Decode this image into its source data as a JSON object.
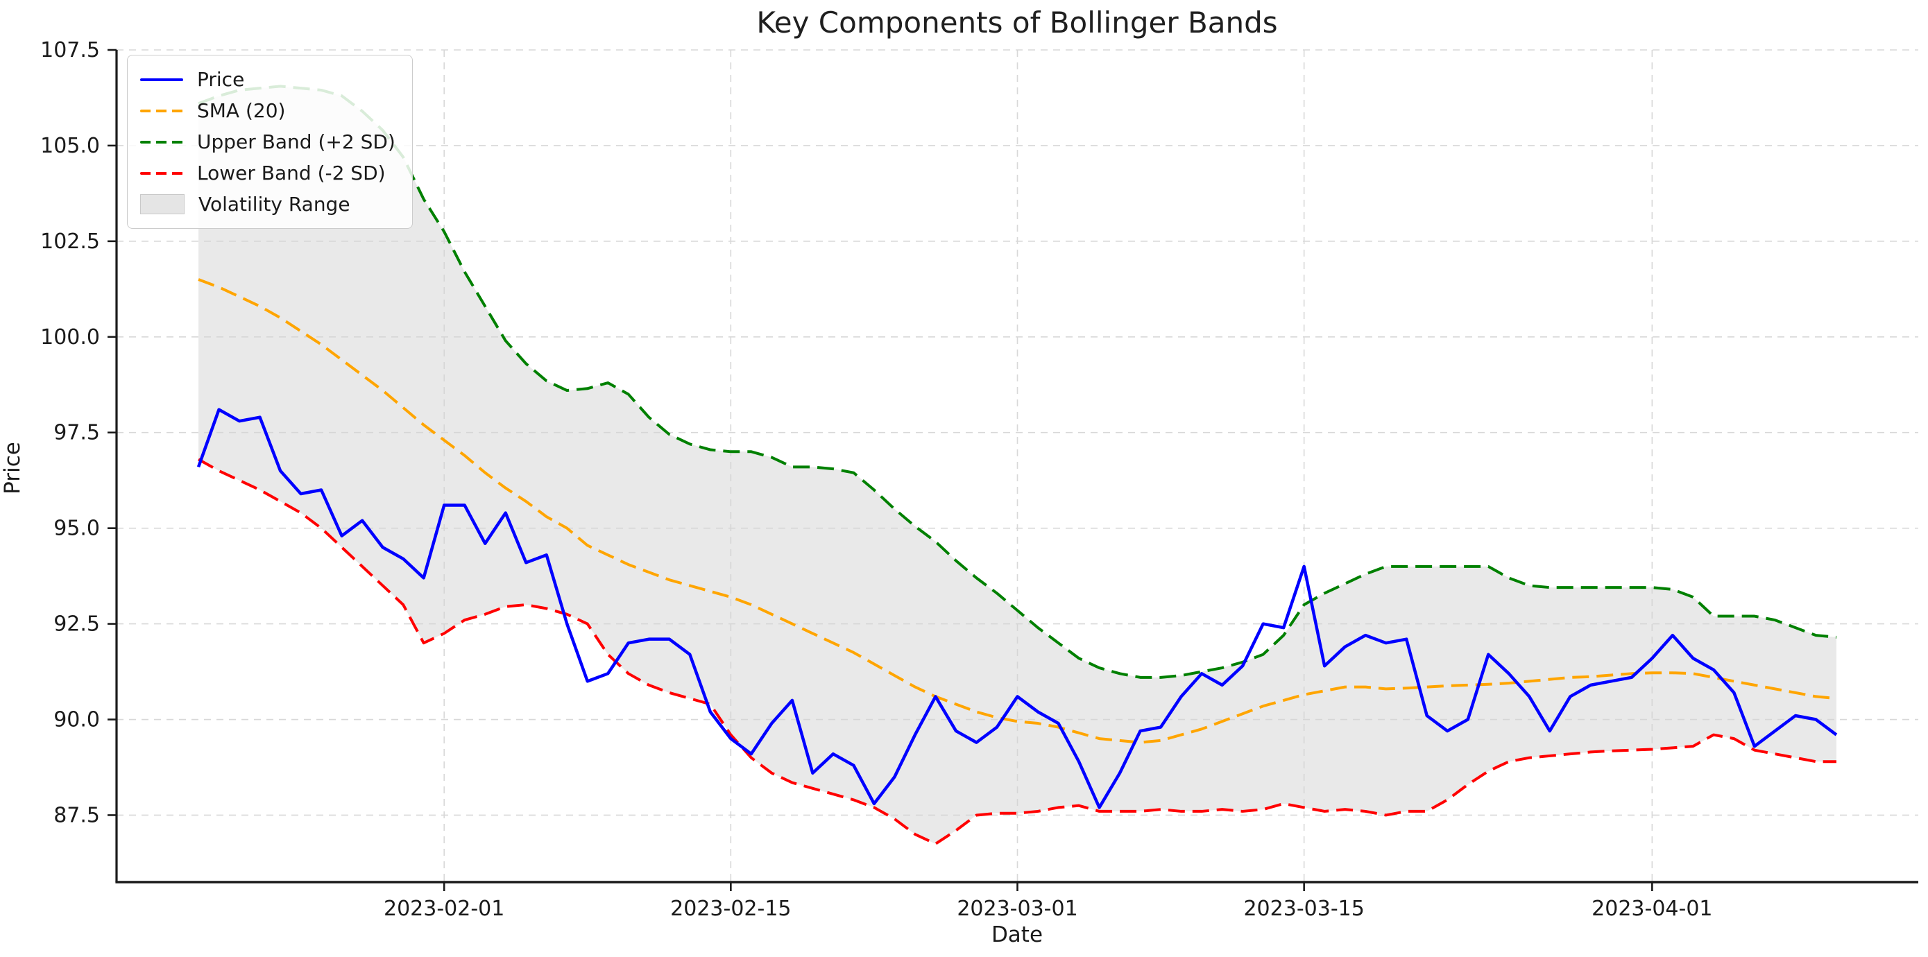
{
  "title": "Key Components of Bollinger Bands",
  "xlabel": "Date",
  "ylabel": "Price",
  "legend": {
    "items": [
      {
        "label": "Price",
        "color": "#0000ff",
        "style": "solid"
      },
      {
        "label": "SMA (20)",
        "color": "#ffa500",
        "style": "dashed"
      },
      {
        "label": "Upper Band (+2 SD)",
        "color": "#008000",
        "style": "dashed"
      },
      {
        "label": "Lower Band (-2 SD)",
        "color": "#ff0000",
        "style": "dashed"
      },
      {
        "label": "Volatility Range",
        "color": "#d3d3d3",
        "style": "fill"
      }
    ]
  },
  "colors": {
    "price": "#0000ff",
    "sma": "#ffa500",
    "upper": "#008000",
    "lower": "#ff0000",
    "band_fill": "#d3d3d3",
    "grid": "#d8d8d8",
    "spine": "#1a1a1a",
    "text": "#1a1a1a",
    "title_text": "#1f1f1f",
    "background": "#ffffff"
  },
  "chart_data": {
    "type": "line",
    "title": "Key Components of Bollinger Bands",
    "xlabel": "Date",
    "ylabel": "Price",
    "grid": true,
    "legend_position": "upper left",
    "ylim": [
      85.75,
      107.5
    ],
    "x_margin_days": 4,
    "x_dates": [
      "2023-01-20",
      "2023-01-21",
      "2023-01-22",
      "2023-01-23",
      "2023-01-24",
      "2023-01-25",
      "2023-01-26",
      "2023-01-27",
      "2023-01-28",
      "2023-01-29",
      "2023-01-30",
      "2023-01-31",
      "2023-02-01",
      "2023-02-02",
      "2023-02-03",
      "2023-02-04",
      "2023-02-05",
      "2023-02-06",
      "2023-02-07",
      "2023-02-08",
      "2023-02-09",
      "2023-02-10",
      "2023-02-11",
      "2023-02-12",
      "2023-02-13",
      "2023-02-14",
      "2023-02-15",
      "2023-02-16",
      "2023-02-17",
      "2023-02-18",
      "2023-02-19",
      "2023-02-20",
      "2023-02-21",
      "2023-02-22",
      "2023-02-23",
      "2023-02-24",
      "2023-02-25",
      "2023-02-26",
      "2023-02-27",
      "2023-02-28",
      "2023-03-01",
      "2023-03-02",
      "2023-03-03",
      "2023-03-04",
      "2023-03-05",
      "2023-03-06",
      "2023-03-07",
      "2023-03-08",
      "2023-03-09",
      "2023-03-10",
      "2023-03-11",
      "2023-03-12",
      "2023-03-13",
      "2023-03-14",
      "2023-03-15",
      "2023-03-16",
      "2023-03-17",
      "2023-03-18",
      "2023-03-19",
      "2023-03-20",
      "2023-03-21",
      "2023-03-22",
      "2023-03-23",
      "2023-03-24",
      "2023-03-25",
      "2023-03-26",
      "2023-03-27",
      "2023-03-28",
      "2023-03-29",
      "2023-03-30",
      "2023-03-31",
      "2023-04-01",
      "2023-04-02",
      "2023-04-03",
      "2023-04-04",
      "2023-04-05",
      "2023-04-06",
      "2023-04-07",
      "2023-04-08",
      "2023-04-09",
      "2023-04-10"
    ],
    "series": [
      {
        "name": "Price",
        "color": "#0000ff",
        "style": "solid",
        "width": 4.5,
        "values": [
          96.6,
          98.1,
          97.8,
          97.9,
          96.5,
          95.9,
          96.0,
          94.8,
          95.2,
          94.5,
          94.2,
          93.7,
          95.6,
          95.6,
          94.6,
          95.4,
          94.1,
          94.3,
          92.5,
          91.0,
          91.2,
          92.0,
          92.1,
          92.1,
          91.7,
          90.2,
          89.5,
          89.1,
          89.9,
          90.5,
          88.6,
          89.1,
          88.8,
          87.8,
          88.5,
          89.6,
          90.6,
          89.7,
          89.4,
          89.8,
          90.6,
          90.2,
          89.9,
          88.9,
          87.7,
          88.6,
          89.7,
          89.8,
          90.6,
          91.2,
          90.9,
          91.4,
          92.5,
          92.4,
          94.0,
          91.4,
          91.9,
          92.2,
          92.0,
          92.1,
          90.1,
          89.7,
          90.0,
          91.7,
          91.2,
          90.6,
          89.7,
          90.6,
          90.9,
          91.0,
          91.1,
          91.6,
          92.2,
          91.6,
          91.3,
          90.7,
          89.3,
          89.7,
          90.1,
          90.0,
          89.6
        ]
      },
      {
        "name": "SMA (20)",
        "color": "#ffa500",
        "style": "dashed",
        "width": 4,
        "values": [
          101.5,
          101.3,
          101.05,
          100.8,
          100.5,
          100.15,
          99.8,
          99.4,
          99.0,
          98.6,
          98.15,
          97.7,
          97.3,
          96.9,
          96.45,
          96.05,
          95.7,
          95.3,
          95.0,
          94.55,
          94.3,
          94.05,
          93.85,
          93.65,
          93.5,
          93.35,
          93.2,
          93.0,
          92.75,
          92.5,
          92.25,
          92.0,
          91.75,
          91.45,
          91.15,
          90.85,
          90.6,
          90.4,
          90.2,
          90.05,
          89.95,
          89.9,
          89.8,
          89.65,
          89.5,
          89.45,
          89.4,
          89.45,
          89.6,
          89.75,
          89.95,
          90.15,
          90.35,
          90.5,
          90.65,
          90.75,
          90.85,
          90.85,
          90.8,
          90.82,
          90.85,
          90.88,
          90.9,
          90.92,
          90.95,
          91.0,
          91.05,
          91.1,
          91.12,
          91.16,
          91.2,
          91.22,
          91.22,
          91.2,
          91.1,
          91.0,
          90.9,
          90.8,
          90.7,
          90.6,
          90.55
        ]
      },
      {
        "name": "Upper Band (+2 SD)",
        "color": "#008000",
        "style": "dashed",
        "width": 4,
        "values": [
          106.1,
          106.3,
          106.45,
          106.5,
          106.55,
          106.5,
          106.45,
          106.3,
          105.9,
          105.4,
          104.7,
          103.6,
          102.75,
          101.7,
          100.8,
          99.9,
          99.3,
          98.85,
          98.6,
          98.65,
          98.8,
          98.5,
          97.9,
          97.45,
          97.2,
          97.05,
          97.0,
          97.0,
          96.85,
          96.6,
          96.6,
          96.55,
          96.45,
          96.0,
          95.5,
          95.05,
          94.65,
          94.15,
          93.7,
          93.3,
          92.85,
          92.4,
          92.0,
          91.6,
          91.35,
          91.2,
          91.1,
          91.1,
          91.15,
          91.25,
          91.35,
          91.5,
          91.7,
          92.2,
          93.0,
          93.3,
          93.55,
          93.8,
          94.0,
          94.0,
          94.0,
          94.0,
          94.0,
          94.0,
          93.7,
          93.5,
          93.45,
          93.45,
          93.45,
          93.45,
          93.45,
          93.45,
          93.4,
          93.2,
          92.7,
          92.7,
          92.7,
          92.6,
          92.4,
          92.2,
          92.15
        ]
      },
      {
        "name": "Lower Band (-2 SD)",
        "color": "#ff0000",
        "style": "dashed",
        "width": 4,
        "values": [
          96.8,
          96.5,
          96.25,
          96.0,
          95.7,
          95.4,
          95.0,
          94.5,
          94.0,
          93.5,
          93.0,
          92.0,
          92.25,
          92.6,
          92.75,
          92.95,
          93.0,
          92.9,
          92.75,
          92.5,
          91.7,
          91.2,
          90.9,
          90.7,
          90.55,
          90.4,
          89.6,
          89.0,
          88.6,
          88.35,
          88.2,
          88.05,
          87.9,
          87.7,
          87.4,
          87.0,
          86.75,
          87.1,
          87.5,
          87.55,
          87.55,
          87.6,
          87.7,
          87.75,
          87.6,
          87.6,
          87.6,
          87.65,
          87.6,
          87.6,
          87.65,
          87.6,
          87.65,
          87.8,
          87.7,
          87.6,
          87.65,
          87.6,
          87.5,
          87.6,
          87.6,
          87.9,
          88.3,
          88.65,
          88.9,
          89.0,
          89.05,
          89.1,
          89.15,
          89.18,
          89.2,
          89.22,
          89.26,
          89.3,
          89.6,
          89.5,
          89.2,
          89.1,
          89.0,
          88.9,
          88.9
        ]
      }
    ],
    "band_fill": {
      "upper": "Upper Band (+2 SD)",
      "lower": "Lower Band (-2 SD)",
      "label": "Volatility Range",
      "color": "#d3d3d3",
      "opacity": 0.5
    },
    "xticks": [
      {
        "index": 12,
        "label": "2023-02-01"
      },
      {
        "index": 26,
        "label": "2023-02-15"
      },
      {
        "index": 40,
        "label": "2023-03-01"
      },
      {
        "index": 54,
        "label": "2023-03-15"
      },
      {
        "index": 71,
        "label": "2023-04-01"
      }
    ],
    "yticks": [
      "87.5",
      "90.0",
      "92.5",
      "95.0",
      "97.5",
      "100.0",
      "102.5",
      "105.0",
      "107.5"
    ]
  }
}
